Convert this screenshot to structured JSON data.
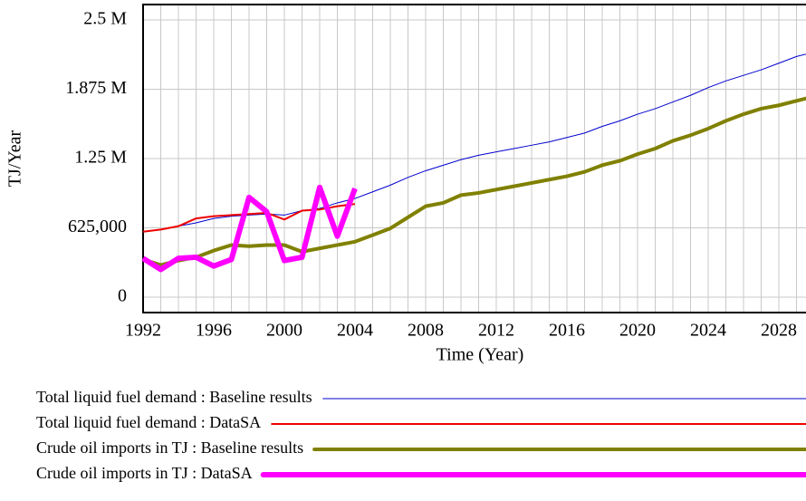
{
  "chart_data": {
    "type": "line",
    "xlabel": "Time (Year)",
    "ylabel": "TJ/Year",
    "x": [
      1992,
      1993,
      1994,
      1995,
      1996,
      1997,
      1998,
      1999,
      2000,
      2001,
      2002,
      2003,
      2004,
      2005,
      2006,
      2007,
      2008,
      2009,
      2010,
      2011,
      2012,
      2013,
      2014,
      2015,
      2016,
      2017,
      2018,
      2019,
      2020,
      2021,
      2022,
      2023,
      2024,
      2025,
      2026,
      2027,
      2028,
      2029,
      2030
    ],
    "xlim": [
      1992,
      2030
    ],
    "xticks": [
      1992,
      1996,
      2000,
      2004,
      2008,
      2012,
      2016,
      2020,
      2024,
      2028
    ],
    "xminor_ticks": [
      1993,
      1994,
      1995,
      1997,
      1998,
      1999,
      2001,
      2002,
      2003,
      2005,
      2006,
      2007,
      2009,
      2010,
      2011,
      2013,
      2014,
      2015,
      2017,
      2018,
      2019,
      2021,
      2022,
      2023,
      2025,
      2026,
      2027,
      2029
    ],
    "ylim": [
      0,
      2500000
    ],
    "yticks": [
      0,
      {
        "value": 625000,
        "label": "625,000"
      },
      {
        "value": 1250000,
        "label": "1.25 M"
      },
      {
        "value": 1875000,
        "label": "1.875 M"
      },
      {
        "value": 2500000,
        "label": "2.5 M"
      }
    ],
    "grid": true,
    "series": [
      {
        "name": "Total liquid fuel demand : Baseline results",
        "color": "#0000cc",
        "width": 1,
        "values": [
          590000,
          610000,
          640000,
          670000,
          710000,
          730000,
          740000,
          750000,
          740000,
          780000,
          800000,
          850000,
          890000,
          950000,
          1010000,
          1080000,
          1140000,
          1190000,
          1240000,
          1280000,
          1310000,
          1340000,
          1370000,
          1400000,
          1440000,
          1480000,
          1540000,
          1590000,
          1650000,
          1700000,
          1760000,
          1820000,
          1890000,
          1950000,
          2000000,
          2050000,
          2110000,
          2170000,
          2210000
        ]
      },
      {
        "name": "Total liquid fuel demand : DataSA",
        "color": "#ee0000",
        "width": 2,
        "values": [
          590000,
          610000,
          640000,
          710000,
          730000,
          740000,
          750000,
          760000,
          700000,
          780000,
          790000,
          820000,
          840000,
          null,
          null,
          null,
          null,
          null,
          null,
          null,
          null,
          null,
          null,
          null,
          null,
          null,
          null,
          null,
          null,
          null,
          null,
          null,
          null,
          null,
          null,
          null,
          null,
          null,
          null
        ]
      },
      {
        "name": "Crude oil imports in TJ : Baseline results",
        "color": "#808000",
        "width": 4,
        "values": [
          340000,
          290000,
          330000,
          360000,
          420000,
          470000,
          460000,
          470000,
          470000,
          410000,
          440000,
          470000,
          500000,
          560000,
          620000,
          720000,
          820000,
          850000,
          920000,
          940000,
          970000,
          1000000,
          1030000,
          1060000,
          1090000,
          1130000,
          1190000,
          1230000,
          1290000,
          1340000,
          1410000,
          1460000,
          1520000,
          1590000,
          1650000,
          1700000,
          1730000,
          1770000,
          1810000
        ]
      },
      {
        "name": "Crude oil imports in TJ : DataSA",
        "color": "#ff00ff",
        "width": 6,
        "values": [
          350000,
          250000,
          350000,
          360000,
          280000,
          340000,
          900000,
          770000,
          330000,
          360000,
          990000,
          550000,
          980000,
          null,
          null,
          null,
          null,
          null,
          null,
          null,
          null,
          null,
          null,
          null,
          null,
          null,
          null,
          null,
          null,
          null,
          null,
          null,
          null,
          null,
          null,
          null,
          null,
          null,
          null
        ]
      }
    ]
  }
}
